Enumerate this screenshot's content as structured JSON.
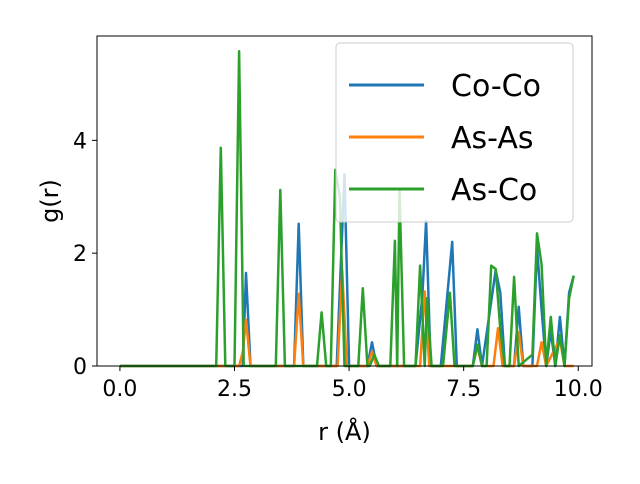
{
  "chart_data": {
    "type": "line",
    "title": "",
    "xlabel": "r (Å)",
    "ylabel": "g(r)",
    "xlim": [
      -0.5,
      10.3
    ],
    "ylim": [
      0,
      5.85
    ],
    "xticks": [
      "0.0",
      "2.5",
      "5.0",
      "7.5",
      "10.0"
    ],
    "yticks": [
      "0",
      "2",
      "4"
    ],
    "grid": false,
    "legend_position": "upper-right",
    "series": [
      {
        "name": "Co-Co",
        "color": "#1f77b4",
        "points": [
          [
            0,
            0
          ],
          [
            2.1,
            0
          ],
          [
            2.35,
            0
          ],
          [
            2.5,
            0
          ],
          [
            2.6,
            0
          ],
          [
            2.68,
            0
          ],
          [
            2.75,
            1.65
          ],
          [
            2.85,
            0
          ],
          [
            3.8,
            0
          ],
          [
            3.9,
            2.52
          ],
          [
            4.0,
            0
          ],
          [
            4.65,
            0
          ],
          [
            4.73,
            0
          ],
          [
            4.9,
            3.4
          ],
          [
            5.0,
            0
          ],
          [
            5.4,
            0
          ],
          [
            5.5,
            0.42
          ],
          [
            5.6,
            0
          ],
          [
            6.45,
            0
          ],
          [
            6.6,
            1.25
          ],
          [
            6.68,
            2.57
          ],
          [
            6.78,
            0
          ],
          [
            7.0,
            0
          ],
          [
            7.25,
            2.2
          ],
          [
            7.35,
            0
          ],
          [
            7.7,
            0
          ],
          [
            7.8,
            0.65
          ],
          [
            7.9,
            0
          ],
          [
            8.2,
            1.7
          ],
          [
            8.3,
            1.3
          ],
          [
            8.4,
            0
          ],
          [
            8.6,
            0
          ],
          [
            8.7,
            1.05
          ],
          [
            8.8,
            0
          ],
          [
            9.0,
            0
          ],
          [
            9.1,
            2.1
          ],
          [
            9.2,
            1.0
          ],
          [
            9.3,
            0
          ],
          [
            9.4,
            0.62
          ],
          [
            9.5,
            0
          ],
          [
            9.6,
            0.87
          ],
          [
            9.7,
            0
          ],
          [
            9.8,
            1.3
          ],
          [
            9.9,
            1.6
          ]
        ]
      },
      {
        "name": "As-As",
        "color": "#ff7f0e",
        "points": [
          [
            0,
            0
          ],
          [
            2.6,
            0
          ],
          [
            2.68,
            0.25
          ],
          [
            2.75,
            0.82
          ],
          [
            2.85,
            0
          ],
          [
            3.8,
            0
          ],
          [
            3.9,
            1.28
          ],
          [
            4.0,
            0
          ],
          [
            4.75,
            0
          ],
          [
            4.85,
            1.7
          ],
          [
            4.95,
            0
          ],
          [
            5.4,
            0
          ],
          [
            5.5,
            0.25
          ],
          [
            5.6,
            0
          ],
          [
            6.55,
            0
          ],
          [
            6.65,
            1.32
          ],
          [
            6.75,
            0
          ],
          [
            7.7,
            0
          ],
          [
            7.8,
            0.35
          ],
          [
            7.9,
            0
          ],
          [
            8.15,
            0
          ],
          [
            8.25,
            0.67
          ],
          [
            8.35,
            0
          ],
          [
            8.6,
            0
          ],
          [
            8.7,
            0.6
          ],
          [
            8.8,
            0
          ],
          [
            9.1,
            0
          ],
          [
            9.2,
            0.42
          ],
          [
            9.3,
            0
          ],
          [
            9.6,
            0.48
          ],
          [
            9.7,
            0
          ],
          [
            9.9,
            0
          ]
        ]
      },
      {
        "name": "As-Co",
        "color": "#2ca02c",
        "points": [
          [
            0,
            0
          ],
          [
            2.1,
            0
          ],
          [
            2.2,
            3.87
          ],
          [
            2.3,
            0
          ],
          [
            2.5,
            0
          ],
          [
            2.6,
            5.58
          ],
          [
            2.7,
            0
          ],
          [
            3.4,
            0
          ],
          [
            3.5,
            3.12
          ],
          [
            3.6,
            0
          ],
          [
            4.3,
            0
          ],
          [
            4.4,
            0.95
          ],
          [
            4.5,
            0
          ],
          [
            4.6,
            0
          ],
          [
            4.7,
            3.48
          ],
          [
            4.8,
            3.0
          ],
          [
            4.9,
            0
          ],
          [
            5.2,
            0
          ],
          [
            5.3,
            1.38
          ],
          [
            5.4,
            0
          ],
          [
            5.45,
            0
          ],
          [
            5.55,
            0.2
          ],
          [
            5.65,
            0
          ],
          [
            5.9,
            0
          ],
          [
            6.0,
            2.22
          ],
          [
            6.05,
            0
          ],
          [
            6.1,
            3.1
          ],
          [
            6.2,
            0
          ],
          [
            6.45,
            0
          ],
          [
            6.55,
            1.78
          ],
          [
            6.65,
            0
          ],
          [
            6.7,
            1.2
          ],
          [
            6.8,
            0
          ],
          [
            7.05,
            0
          ],
          [
            7.2,
            1.3
          ],
          [
            7.3,
            0
          ],
          [
            7.7,
            0
          ],
          [
            7.8,
            0.38
          ],
          [
            7.9,
            0
          ],
          [
            8.0,
            0
          ],
          [
            8.1,
            1.78
          ],
          [
            8.2,
            1.72
          ],
          [
            8.3,
            0.65
          ],
          [
            8.4,
            0
          ],
          [
            8.5,
            0
          ],
          [
            8.6,
            1.58
          ],
          [
            8.7,
            0
          ],
          [
            9.0,
            0.2
          ],
          [
            9.1,
            2.35
          ],
          [
            9.2,
            1.8
          ],
          [
            9.3,
            0
          ],
          [
            9.4,
            0.87
          ],
          [
            9.5,
            0
          ],
          [
            9.6,
            0.55
          ],
          [
            9.7,
            0
          ],
          [
            9.8,
            1.2
          ],
          [
            9.9,
            1.6
          ]
        ]
      }
    ]
  }
}
